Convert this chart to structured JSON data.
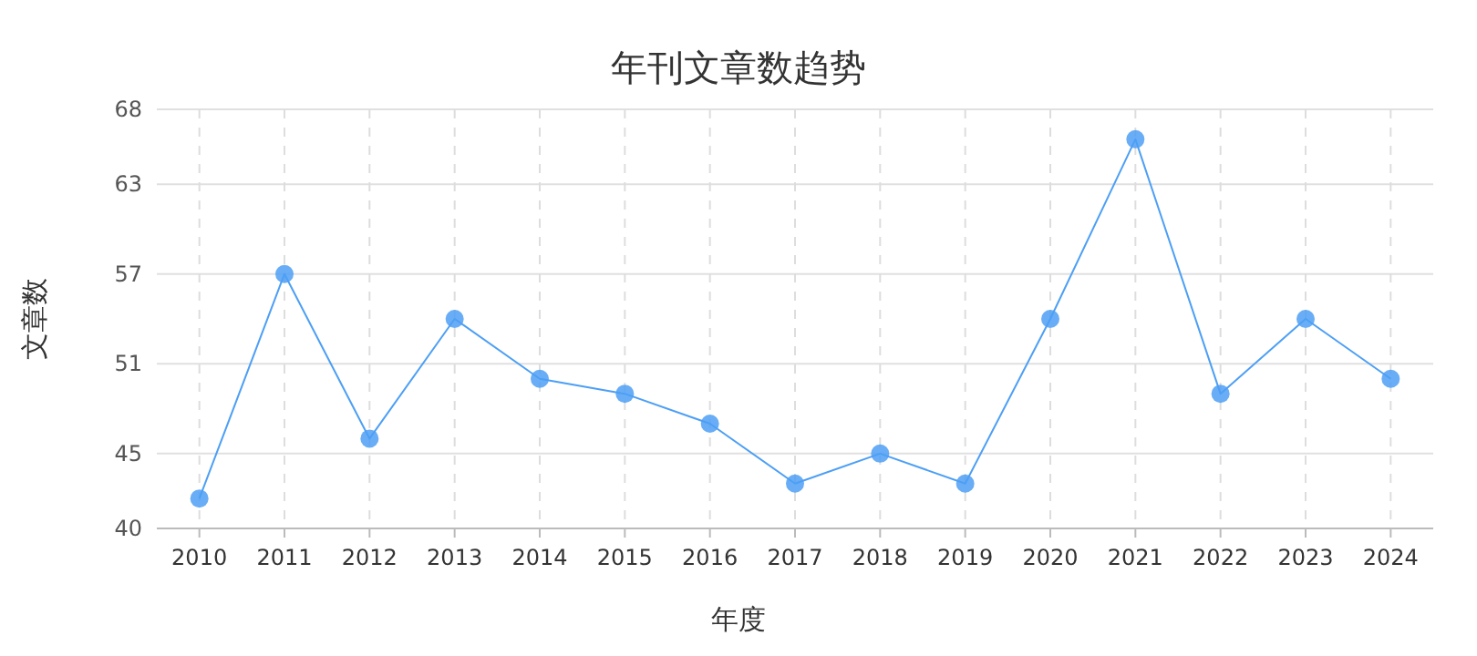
{
  "chart_data": {
    "type": "line",
    "title": "年刊文章数趋势",
    "xlabel": "年度",
    "ylabel": "文章数",
    "categories": [
      "2010",
      "2011",
      "2012",
      "2013",
      "2014",
      "2015",
      "2016",
      "2017",
      "2018",
      "2019",
      "2020",
      "2021",
      "2022",
      "2023",
      "2024"
    ],
    "series": [
      {
        "color": "#4d9ff5",
        "values": [
          42,
          57,
          46,
          54,
          50,
          49,
          47,
          43,
          45,
          43,
          54,
          66,
          49,
          54,
          50
        ]
      }
    ],
    "ylim": [
      40,
      68
    ],
    "yticks": [
      40,
      45,
      51,
      57,
      63,
      68
    ],
    "grid": true,
    "marker": "circle"
  }
}
